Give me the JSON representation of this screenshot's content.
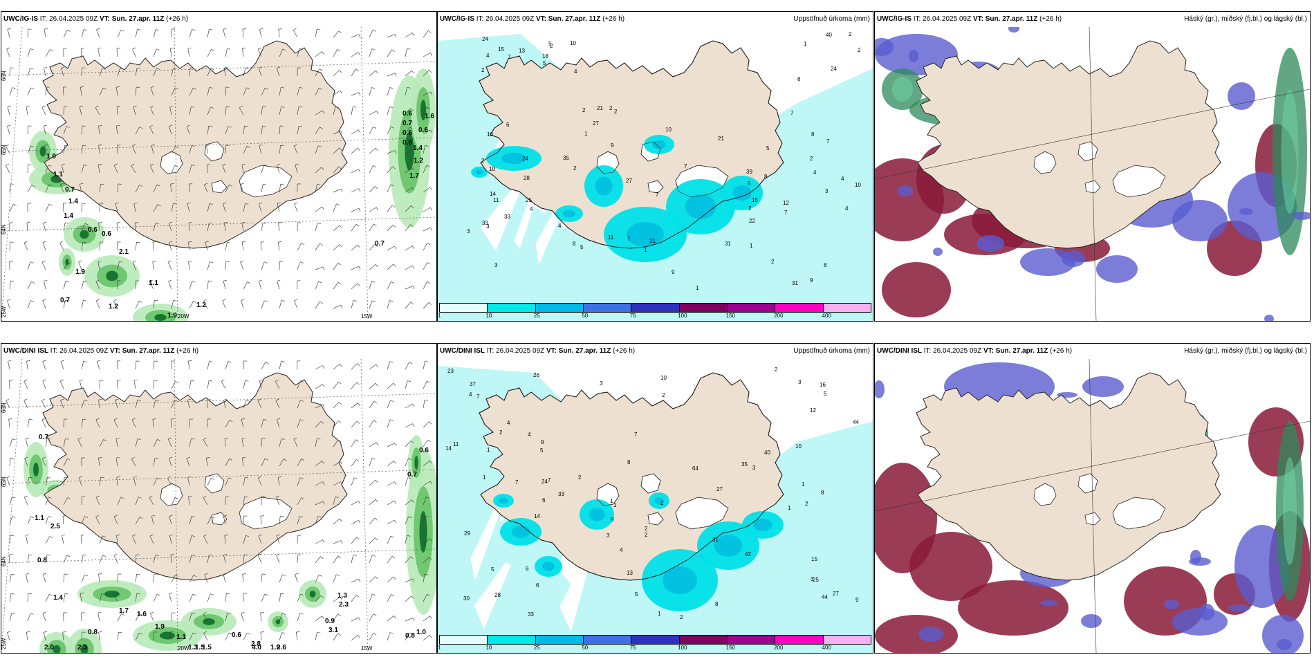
{
  "panels": [
    {
      "id": "p1",
      "model": "UWC/IG-IS",
      "it_label": "IT:",
      "it": "26.04.2025 09Z",
      "vt_label": "VT:",
      "vt": "Sun. 27.apr. 11Z",
      "lead": "(+26 h)",
      "right_label": "",
      "type": "wind",
      "coords": [
        "66N",
        "65N",
        "64N",
        "25W",
        "20W",
        "15W"
      ],
      "values": [
        {
          "v": "0.6"
        },
        {
          "v": "0.7"
        },
        {
          "v": "0.6"
        },
        {
          "v": "0.6"
        },
        {
          "v": "1.6"
        },
        {
          "v": "0.6"
        },
        {
          "v": "1.4"
        },
        {
          "v": "1.2"
        },
        {
          "v": "1.7"
        },
        {
          "v": "1.9"
        },
        {
          "v": "1.1"
        },
        {
          "v": "0.7"
        },
        {
          "v": "1.4"
        },
        {
          "v": "1.4"
        },
        {
          "v": "0.6"
        },
        {
          "v": "0.6"
        },
        {
          "v": "2.1"
        },
        {
          "v": "0.7"
        },
        {
          "v": "1.9"
        },
        {
          "v": "1.1"
        },
        {
          "v": "0.7"
        },
        {
          "v": "1.2"
        },
        {
          "v": "1.2"
        },
        {
          "v": "1.9"
        }
      ]
    },
    {
      "id": "p2",
      "model": "UWC/IG-IS",
      "it_label": "IT:",
      "it": "26.04.2025 09Z",
      "vt_label": "VT:",
      "vt": "Sun. 27.apr. 11Z",
      "lead": "(+26 h)",
      "right_label": "Uppsöfnuð úrkoma (mm)",
      "type": "precip",
      "values": [
        {
          "v": "5"
        },
        {
          "v": "4"
        },
        {
          "v": "3"
        },
        {
          "v": "2"
        },
        {
          "v": "2"
        },
        {
          "v": "2"
        },
        {
          "v": "3"
        },
        {
          "v": "2"
        },
        {
          "v": "1"
        },
        {
          "v": "2"
        },
        {
          "v": "2"
        },
        {
          "v": "4"
        },
        {
          "v": "8"
        },
        {
          "v": "11"
        },
        {
          "v": "7"
        },
        {
          "v": "7"
        },
        {
          "v": "7"
        },
        {
          "v": "2"
        },
        {
          "v": "4"
        },
        {
          "v": "2"
        },
        {
          "v": "1"
        },
        {
          "v": "1"
        },
        {
          "v": "3"
        },
        {
          "v": "18"
        },
        {
          "v": "15"
        },
        {
          "v": "10"
        },
        {
          "v": "5"
        },
        {
          "v": "5"
        },
        {
          "v": "9"
        },
        {
          "v": "31"
        },
        {
          "v": "27"
        },
        {
          "v": "2"
        },
        {
          "v": "2"
        },
        {
          "v": "7"
        },
        {
          "v": "2"
        },
        {
          "v": "24"
        },
        {
          "v": "21"
        },
        {
          "v": "33"
        },
        {
          "v": "24"
        },
        {
          "v": "9"
        },
        {
          "v": "7"
        },
        {
          "v": "12"
        },
        {
          "v": "4"
        },
        {
          "v": "3"
        },
        {
          "v": "15"
        },
        {
          "v": "21"
        },
        {
          "v": "10"
        },
        {
          "v": "10"
        },
        {
          "v": "21"
        },
        {
          "v": "40"
        },
        {
          "v": "39"
        },
        {
          "v": "22"
        },
        {
          "v": "31"
        },
        {
          "v": "24"
        },
        {
          "v": "28"
        },
        {
          "v": "13"
        },
        {
          "v": "8"
        },
        {
          "v": "4"
        },
        {
          "v": "14"
        },
        {
          "v": "6"
        },
        {
          "v": "27"
        },
        {
          "v": "25"
        },
        {
          "v": "35"
        },
        {
          "v": "33"
        },
        {
          "v": "10"
        },
        {
          "v": "9"
        },
        {
          "v": "7"
        },
        {
          "v": "10"
        },
        {
          "v": "11"
        },
        {
          "v": "8"
        },
        {
          "v": "5"
        },
        {
          "v": "8"
        },
        {
          "v": "4"
        },
        {
          "v": "7"
        },
        {
          "v": "8"
        },
        {
          "v": "4"
        },
        {
          "v": "5"
        },
        {
          "v": "1"
        },
        {
          "v": "2"
        },
        {
          "v": "1"
        }
      ],
      "legend": {
        "ticks": [
          "1",
          "10",
          "25",
          "50",
          "75",
          "100",
          "150",
          "200",
          "400"
        ],
        "colors": [
          "#e8ffff",
          "#00e8e8",
          "#00b8e8",
          "#4070e8",
          "#3030c0",
          "#800060",
          "#a00090",
          "#ff00c0",
          "#f8b0f0"
        ]
      }
    },
    {
      "id": "p3",
      "model": "UWC/IG-IS",
      "it_label": "IT:",
      "it": "26.04.2025 09Z",
      "vt_label": "VT:",
      "vt": "Sun. 27.apr. 11Z",
      "lead": "(+26 h)",
      "right_label": "Háský (gr.), miðský (fj.bl.) og lágský (bl.)",
      "type": "cloud"
    },
    {
      "id": "p4",
      "model": "UWC/DINI ISL",
      "it_label": "IT:",
      "it": "26.04.2025 09Z",
      "vt_label": "VT:",
      "vt": "Sun. 27.apr. 11Z",
      "lead": "(+26 h)",
      "right_label": "",
      "type": "wind",
      "coords": [
        "66N",
        "65N",
        "64N",
        "25W",
        "20W",
        "15W"
      ],
      "values": [
        {
          "v": "0.7"
        },
        {
          "v": "0.6"
        },
        {
          "v": "0.7"
        },
        {
          "v": "1.1"
        },
        {
          "v": "2.5"
        },
        {
          "v": "0.8"
        },
        {
          "v": "1.4"
        },
        {
          "v": "1.7"
        },
        {
          "v": "1.6"
        },
        {
          "v": "1.9"
        },
        {
          "v": "0.8"
        },
        {
          "v": "1.1"
        },
        {
          "v": "1.3"
        },
        {
          "v": "1.5"
        },
        {
          "v": "1.5"
        },
        {
          "v": "2.3"
        },
        {
          "v": "2.0"
        },
        {
          "v": "0.6"
        },
        {
          "v": "2.8"
        },
        {
          "v": "4.0"
        },
        {
          "v": "1.9"
        },
        {
          "v": "2.6"
        },
        {
          "v": "0.9"
        },
        {
          "v": "3.1"
        },
        {
          "v": "1.3"
        },
        {
          "v": "2.3"
        },
        {
          "v": "0.8"
        },
        {
          "v": "1.0"
        }
      ]
    },
    {
      "id": "p5",
      "model": "UWC/DINI ISL",
      "it_label": "IT:",
      "it": "26.04.2025 09Z",
      "vt_label": "VT:",
      "vt": "Sun. 27.apr. 11Z",
      "lead": "(+26 h)",
      "right_label": "Uppsöfnuð úrkoma (mm)",
      "type": "precip",
      "values": [
        {
          "v": "7"
        },
        {
          "v": "5"
        },
        {
          "v": "4"
        },
        {
          "v": "2"
        },
        {
          "v": "3"
        },
        {
          "v": "3"
        },
        {
          "v": "2"
        },
        {
          "v": "1"
        },
        {
          "v": "2"
        },
        {
          "v": "1"
        },
        {
          "v": "5"
        },
        {
          "v": "3"
        },
        {
          "v": "9"
        },
        {
          "v": "7"
        },
        {
          "v": "5"
        },
        {
          "v": "8"
        },
        {
          "v": "6"
        },
        {
          "v": "1"
        },
        {
          "v": "2"
        },
        {
          "v": "2"
        },
        {
          "v": "2"
        },
        {
          "v": "29"
        },
        {
          "v": "15"
        },
        {
          "v": "33"
        },
        {
          "v": "27"
        },
        {
          "v": "26"
        },
        {
          "v": "1"
        },
        {
          "v": "2"
        },
        {
          "v": "31"
        },
        {
          "v": "11"
        },
        {
          "v": "1"
        },
        {
          "v": "23"
        },
        {
          "v": "12"
        },
        {
          "v": "4"
        },
        {
          "v": "9"
        },
        {
          "v": "9"
        },
        {
          "v": "25"
        },
        {
          "v": "44"
        },
        {
          "v": "37"
        },
        {
          "v": "27"
        },
        {
          "v": "3"
        },
        {
          "v": "14"
        },
        {
          "v": "10"
        },
        {
          "v": "24"
        },
        {
          "v": "30"
        },
        {
          "v": "64"
        },
        {
          "v": "35"
        },
        {
          "v": "2"
        },
        {
          "v": "6"
        },
        {
          "v": "2"
        },
        {
          "v": "40"
        },
        {
          "v": "42"
        },
        {
          "v": "44"
        },
        {
          "v": "28"
        },
        {
          "v": "8"
        },
        {
          "v": "13"
        },
        {
          "v": "16"
        },
        {
          "v": "14"
        },
        {
          "v": "7"
        },
        {
          "v": "10"
        },
        {
          "v": "8"
        },
        {
          "v": "5"
        },
        {
          "v": "4"
        },
        {
          "v": "7"
        },
        {
          "v": "33"
        },
        {
          "v": "1"
        },
        {
          "v": "1"
        },
        {
          "v": "4"
        },
        {
          "v": "3"
        },
        {
          "v": "6"
        }
      ],
      "legend": {
        "ticks": [
          "1",
          "10",
          "25",
          "50",
          "75",
          "100",
          "150",
          "200",
          "400"
        ],
        "colors": [
          "#e8ffff",
          "#00e8e8",
          "#00b8e8",
          "#4070e8",
          "#3030c0",
          "#800060",
          "#a00090",
          "#ff00c0",
          "#f8b0f0"
        ]
      }
    },
    {
      "id": "p6",
      "model": "UWC/DINI ISL",
      "it_label": "IT:",
      "it": "26.04.2025 09Z",
      "vt_label": "VT:",
      "vt": "Sun. 27.apr. 11Z",
      "lead": "(+26 h)",
      "right_label": "Háský (gr.), miðský (fj.bl.) og lágský (bl.)",
      "type": "cloud"
    }
  ],
  "colors": {
    "land": "#eee0d0",
    "ice": "#ffffff",
    "wind_green_light": "#b8eab8",
    "wind_green_mid": "#5cbf5c",
    "wind_green_dark": "#0e6a2a",
    "precip_light": "#bff7f7",
    "precip_mid": "#00e0e8",
    "precip_dark": "#00c0e0",
    "cloud_high": "#2e8a5a",
    "cloud_mid": "#5a5ccf",
    "cloud_low": "#8a1a3a"
  }
}
